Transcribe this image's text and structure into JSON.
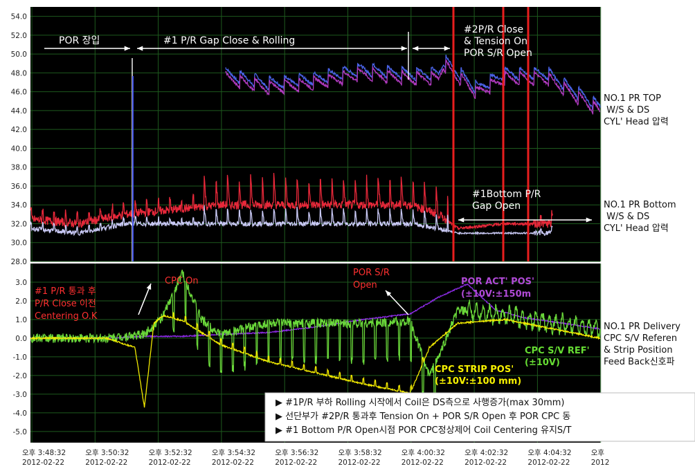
{
  "chart_data": [
    {
      "type": "line",
      "panel": "top",
      "ylim": [
        28,
        55
      ],
      "yticks": [
        "54.0",
        "52.0",
        "50.0",
        "48.0",
        "46.0",
        "44.0",
        "42.0",
        "40.0",
        "38.0",
        "36.0",
        "34.0",
        "32.0",
        "30.0",
        "28.0"
      ],
      "side_labels": [
        [
          "NO.1 PR TOP",
          " W/S & DS",
          "CYL' Head 압력"
        ],
        [
          "NO.1 PR Bottom",
          " W/S & DS",
          "CYL' Head 압력"
        ]
      ],
      "annotations": [
        {
          "text": [
            "POR 장입"
          ],
          "color": "#ffffff"
        },
        {
          "text": [
            "#1 P/R Gap Close & Rolling"
          ],
          "color": "#ffffff"
        },
        {
          "text": [
            "#2P/R Close",
            "& Tension On",
            "POR S/R Open"
          ],
          "color": "#ffffff"
        },
        {
          "text": [
            "#1Bottom P/R",
            "Gap Open"
          ],
          "color": "#ffffff"
        }
      ],
      "series": [
        {
          "color": "#4a63e8",
          "x": [
            0,
            20,
            20.5,
            25,
            30,
            35,
            40,
            43,
            43.5,
            47,
            50,
            50.5,
            54,
            54.5,
            60
          ],
          "y": [
            null,
            null,
            48,
            47,
            47.5,
            48.5,
            48,
            48,
            49.5,
            46.5,
            48,
            48,
            48,
            48,
            44.5
          ]
        },
        {
          "color": "#b03abf",
          "x": [
            0,
            20,
            20.5,
            25,
            30,
            35,
            40,
            43,
            43.5,
            47,
            50,
            50.5,
            54,
            54.5,
            60
          ],
          "y": [
            null,
            null,
            47.5,
            46.5,
            47,
            48,
            47.5,
            47.5,
            49,
            46,
            47.5,
            47.5,
            47.5,
            47.5,
            44
          ]
        },
        {
          "color": "#e8283a",
          "x": [
            0,
            5,
            10,
            15,
            20,
            25,
            30,
            35,
            40,
            43,
            45,
            50,
            55,
            60
          ],
          "y": [
            32.5,
            32,
            33,
            33.5,
            34,
            34,
            34,
            34,
            34,
            33,
            31.5,
            32,
            32,
            null
          ]
        },
        {
          "color": "#c9c9f5",
          "x": [
            0,
            5,
            10,
            15,
            20,
            25,
            30,
            35,
            40,
            43,
            45,
            50,
            55,
            60
          ],
          "y": [
            31.5,
            31,
            32,
            32,
            32,
            32,
            32,
            32,
            32,
            31.5,
            31,
            31,
            31,
            null
          ]
        }
      ]
    },
    {
      "type": "line",
      "panel": "bottom",
      "ylim": [
        -5.6,
        4
      ],
      "yticks": [
        "3.0",
        "2.0",
        "1.0",
        "0.0",
        "-1.0",
        "-2.0",
        "-3.0",
        "-4.0",
        "-5.0"
      ],
      "side_labels": [
        [
          "NO.1 PR Delivery",
          "CPC S/V Referen",
          "& Strip Position",
          "Feed Back신호파"
        ]
      ],
      "annotations": [
        {
          "text": [
            "#1 P/R 통과 후",
            "P/R Close 이전",
            "Centering O.K"
          ],
          "color": "#ff3030"
        },
        {
          "text": [
            "CPC On"
          ],
          "color": "#ff3030"
        },
        {
          "text": [
            "POR S/R",
            "Open"
          ],
          "color": "#ff3030"
        },
        {
          "text": [
            "POR ACT' POS'",
            "(±10V:±150m"
          ],
          "color": "#b04ad6"
        },
        {
          "text": [
            "CPC S/V REF'",
            "(±10V)"
          ],
          "color": "#66dd33"
        },
        {
          "text": [
            "CPC STRIP POS'",
            "(±10V:±100 mm)"
          ],
          "color": "#f6f000"
        }
      ],
      "series": [
        {
          "name": "POR ACT' POS'",
          "color": "#8a2be2",
          "x": [
            0,
            8,
            12,
            16,
            20,
            25,
            30,
            35,
            40,
            43,
            46,
            49,
            52,
            60
          ],
          "y": [
            0,
            0,
            0.1,
            0.1,
            0.2,
            0.3,
            0.6,
            1,
            1.3,
            2.2,
            2.9,
            1.5,
            1.1,
            0.5
          ]
        },
        {
          "name": "CPC S/V REF'",
          "color": "#6ad83a",
          "x": [
            0,
            8,
            12,
            14,
            16,
            18,
            20,
            25,
            30,
            35,
            40,
            42,
            43,
            45,
            50,
            55,
            60
          ],
          "y": [
            0,
            0,
            0.2,
            1.2,
            3.5,
            1,
            0.2,
            0.8,
            0.8,
            0.8,
            0.9,
            -2,
            -1,
            1.5,
            1.2,
            0.8,
            0.5
          ]
        },
        {
          "name": "CPC STRIP POS'",
          "color": "#f2ea00",
          "x": [
            0,
            8,
            11,
            12,
            13,
            14,
            16,
            20,
            25,
            30,
            35,
            40,
            42,
            45,
            50,
            55,
            60
          ],
          "y": [
            0,
            0,
            -0.5,
            -3.7,
            0.8,
            1.2,
            1,
            -0.3,
            -1.2,
            -1.8,
            -2.4,
            -2.9,
            -0.5,
            0.8,
            1,
            0.5,
            0
          ]
        }
      ]
    }
  ],
  "x_ticks": [
    [
      "오후 3:48:32",
      "2012-02-22"
    ],
    [
      "오후 3:50:32",
      "2012-02-22"
    ],
    [
      "오후 3:52:32",
      "2012-02-22"
    ],
    [
      "오후 3:54:32",
      "2012-02-22"
    ],
    [
      "오후 3:56:32",
      "2012-02-22"
    ],
    [
      "오후 3:58:32",
      "2012-02-22"
    ],
    [
      "오후 4:00:32",
      "2012-02-22"
    ],
    [
      "오후 4:02:32",
      "2012-02-22"
    ],
    [
      "오후 4:04:32",
      "2012-02-22"
    ],
    [
      "오후",
      "2012"
    ]
  ],
  "notes": [
    "▶ #1P/R 부하 Rolling 시작에서 Coil은 DS측으로 사행증가(max 30mm)",
    "▶ 선단부가 #2P/R 통과후 Tension On + POR S/R Open 후 POR CPC 동",
    "▶ #1 Bottom P/R Open시점 POR CPC정상제어 Coil Centering 유지S/T"
  ]
}
